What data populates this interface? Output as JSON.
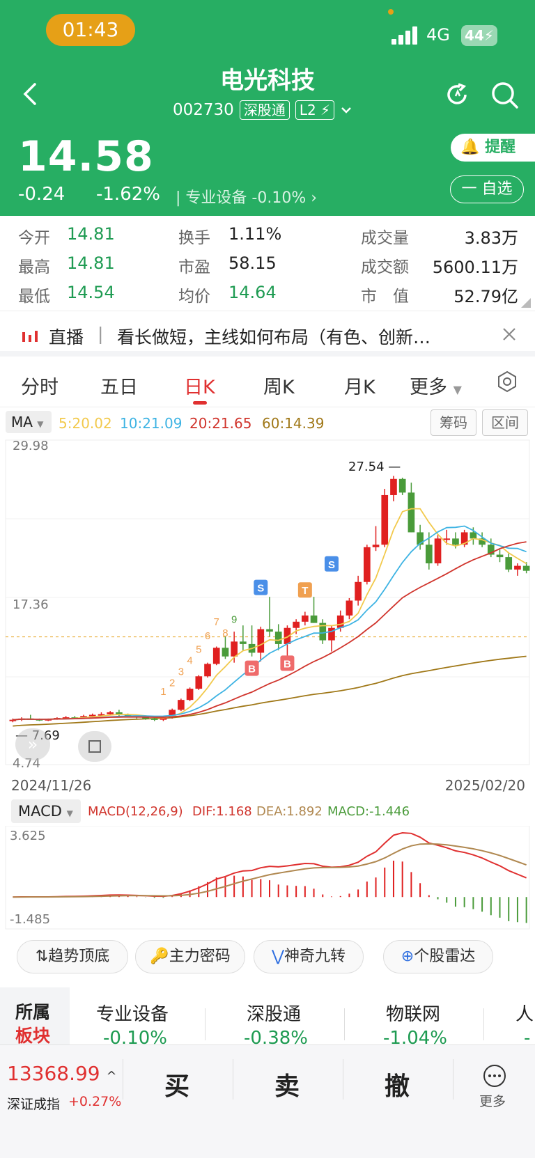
{
  "status_bar": {
    "time": "01:43",
    "network": "4G",
    "battery": "44"
  },
  "stock": {
    "name": "电光科技",
    "code": "002730",
    "tag_connect": "深股通",
    "tag_level": "L2"
  },
  "quote": {
    "price": "14.58",
    "change": "-0.24",
    "change_pct": "-1.62%",
    "sector_name": "专业设备",
    "sector_pct": "-0.10%"
  },
  "actions": {
    "remind": "提醒",
    "watchlist": "一 自选"
  },
  "stats": {
    "open_label": "今开",
    "open": "14.81",
    "high_label": "最高",
    "high": "14.81",
    "low_label": "最低",
    "low": "14.54",
    "turnover_label": "换手",
    "turnover": "1.11%",
    "pe_label": "市盈",
    "pe": "58.15",
    "avg_label": "均价",
    "avg": "14.64",
    "volume_label": "成交量",
    "volume": "3.83万",
    "amount_label": "成交额",
    "amount": "5600.11万",
    "mcap_label": "市　值",
    "mcap": "52.79亿"
  },
  "live": {
    "label": "直播",
    "text": "看长做短，主线如何布局（有色、创新…"
  },
  "tabs": [
    "分时",
    "五日",
    "日K",
    "周K",
    "月K",
    "更多"
  ],
  "ma": {
    "label": "MA",
    "ma5": "5:20.02",
    "ma10": "10:21.09",
    "ma20": "20:21.65",
    "ma60": "60:14.39",
    "chips": "筹码",
    "range": "区间"
  },
  "kline_axis": {
    "top": "29.98",
    "mid": "17.36",
    "bottom": "4.74",
    "peak": "27.54",
    "low": "7.69",
    "start_date": "2024/11/26",
    "end_date": "2025/02/20"
  },
  "macd": {
    "label": "MACD",
    "params": "MACD(12,26,9)",
    "dif": "DIF:1.168",
    "dea": "DEA:1.892",
    "macd": "MACD:-1.446",
    "top": "3.625",
    "bottom": "-1.485"
  },
  "tools": [
    "趋势顶底",
    "主力密码",
    "神奇九转",
    "个股雷达"
  ],
  "sectors": {
    "title_1": "所属",
    "title_2": "板块",
    "items": [
      {
        "name": "专业设备",
        "pct": "-0.10%"
      },
      {
        "name": "深股通",
        "pct": "-0.38%"
      },
      {
        "name": "物联网",
        "pct": "-1.04%"
      },
      {
        "name": "人",
        "pct": "-"
      }
    ]
  },
  "bottom_bar": {
    "index_value": "13368.99",
    "index_name": "深证成指",
    "index_pct": "+0.27%",
    "buy": "买",
    "sell": "卖",
    "cancel": "撤",
    "more": "更多"
  },
  "chart_data": {
    "type": "candlestick",
    "series_ma": [
      "MA5",
      "MA10",
      "MA20",
      "MA60"
    ],
    "ylim": [
      4.74,
      29.98
    ],
    "candles": [
      [
        7.8,
        8.0,
        7.7,
        7.9
      ],
      [
        7.9,
        8.1,
        7.8,
        8.0
      ],
      [
        8.0,
        8.3,
        7.9,
        7.95
      ],
      [
        7.95,
        8.0,
        7.8,
        7.9
      ],
      [
        7.9,
        8.0,
        7.8,
        7.95
      ],
      [
        7.95,
        8.1,
        7.9,
        8.05
      ],
      [
        8.05,
        8.2,
        8.0,
        8.1
      ],
      [
        8.1,
        8.2,
        8.0,
        8.05
      ],
      [
        8.05,
        8.3,
        8.0,
        8.2
      ],
      [
        8.2,
        8.4,
        8.1,
        8.3
      ],
      [
        8.3,
        8.5,
        8.2,
        8.35
      ],
      [
        8.35,
        8.6,
        8.3,
        8.5
      ],
      [
        8.5,
        8.7,
        8.2,
        8.3
      ],
      [
        8.3,
        8.4,
        8.1,
        8.2
      ],
      [
        8.2,
        8.3,
        8.0,
        8.1
      ],
      [
        8.1,
        8.2,
        7.9,
        8.0
      ],
      [
        8.0,
        8.1,
        7.8,
        7.9
      ],
      [
        7.9,
        8.2,
        7.8,
        8.1
      ],
      [
        8.1,
        8.8,
        8.0,
        8.7
      ],
      [
        8.7,
        9.6,
        8.6,
        9.5
      ],
      [
        9.5,
        10.5,
        9.4,
        10.4
      ],
      [
        10.4,
        11.5,
        10.3,
        11.4
      ],
      [
        11.4,
        12.5,
        11.3,
        12.4
      ],
      [
        12.4,
        13.8,
        12.3,
        13.7
      ],
      [
        13.7,
        14.6,
        12.8,
        13.0
      ],
      [
        13.0,
        15.0,
        12.5,
        14.2
      ],
      [
        14.2,
        15.5,
        13.5,
        14.0
      ],
      [
        14.0,
        15.5,
        13.0,
        13.3
      ],
      [
        13.3,
        15.4,
        12.6,
        15.2
      ],
      [
        15.2,
        17.8,
        14.6,
        15.0
      ],
      [
        15.0,
        15.6,
        13.5,
        14.0
      ],
      [
        14.0,
        15.5,
        13.0,
        15.3
      ],
      [
        15.3,
        16.0,
        14.8,
        15.8
      ],
      [
        15.8,
        16.6,
        15.5,
        16.3
      ],
      [
        16.3,
        17.8,
        15.7,
        15.7
      ],
      [
        15.7,
        16.0,
        14.0,
        14.3
      ],
      [
        14.3,
        15.5,
        13.4,
        15.3
      ],
      [
        15.3,
        16.7,
        15.0,
        16.3
      ],
      [
        16.3,
        17.7,
        16.0,
        17.5
      ],
      [
        17.5,
        19.5,
        17.1,
        19.0
      ],
      [
        19.0,
        22.0,
        18.8,
        21.8
      ],
      [
        21.8,
        23.5,
        21.5,
        22.0
      ],
      [
        22.0,
        26.5,
        21.8,
        26.0
      ],
      [
        26.0,
        27.54,
        25.5,
        27.3
      ],
      [
        27.3,
        27.4,
        26.0,
        26.2
      ],
      [
        26.2,
        27.0,
        23.0,
        23.0
      ],
      [
        23.0,
        23.6,
        21.6,
        22.0
      ],
      [
        22.0,
        23.0,
        20.0,
        20.5
      ],
      [
        20.5,
        22.8,
        20.3,
        22.5
      ],
      [
        22.5,
        23.2,
        22.0,
        22.5
      ],
      [
        22.5,
        23.0,
        21.7,
        22.0
      ],
      [
        22.0,
        23.2,
        21.8,
        23.0
      ],
      [
        23.0,
        23.4,
        22.0,
        22.5
      ],
      [
        22.5,
        23.0,
        21.8,
        22.0
      ],
      [
        22.0,
        22.5,
        21.0,
        21.2
      ],
      [
        21.2,
        21.6,
        20.6,
        21.0
      ],
      [
        21.0,
        21.3,
        19.8,
        20.0
      ],
      [
        20.0,
        20.5,
        19.5,
        20.3
      ],
      [
        20.3,
        20.6,
        19.7,
        19.9
      ]
    ]
  }
}
